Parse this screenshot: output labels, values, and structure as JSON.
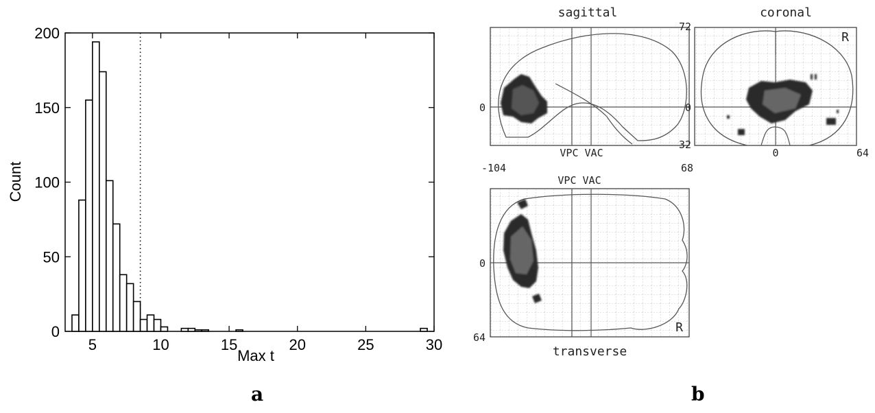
{
  "panels": {
    "a": {
      "letter": "a"
    },
    "b": {
      "letter": "b"
    }
  },
  "chart_data": {
    "type": "bar",
    "xlabel": "Max t",
    "ylabel": "Count",
    "xlim": [
      3,
      30
    ],
    "ylim": [
      0,
      200
    ],
    "xticks": [
      5,
      10,
      15,
      20,
      25,
      30
    ],
    "yticks": [
      0,
      50,
      100,
      150,
      200
    ],
    "bin_width": 0.5,
    "threshold": 8.5,
    "bins": [
      {
        "x": 3.75,
        "count": 11
      },
      {
        "x": 4.25,
        "count": 88
      },
      {
        "x": 4.75,
        "count": 155
      },
      {
        "x": 5.25,
        "count": 194
      },
      {
        "x": 5.75,
        "count": 174
      },
      {
        "x": 6.25,
        "count": 101
      },
      {
        "x": 6.75,
        "count": 72
      },
      {
        "x": 7.25,
        "count": 38
      },
      {
        "x": 7.75,
        "count": 32
      },
      {
        "x": 8.25,
        "count": 20
      },
      {
        "x": 8.75,
        "count": 8
      },
      {
        "x": 9.25,
        "count": 11
      },
      {
        "x": 9.75,
        "count": 8
      },
      {
        "x": 10.25,
        "count": 3
      },
      {
        "x": 11.75,
        "count": 2
      },
      {
        "x": 12.25,
        "count": 2
      },
      {
        "x": 12.75,
        "count": 1
      },
      {
        "x": 13.25,
        "count": 1
      },
      {
        "x": 15.75,
        "count": 1
      },
      {
        "x": 29.25,
        "count": 2
      }
    ],
    "grid": false
  },
  "glass_brain": {
    "sagittal": {
      "title": "sagittal",
      "left_tick": "0",
      "bottom_label": "VPC VAC",
      "x_min": "-104",
      "x_max": "68"
    },
    "coronal": {
      "title": "coronal",
      "top_tick": "72",
      "bottom_tick": "32",
      "left_tick": "0",
      "x_mid": "0",
      "x_max": "64",
      "side": "R"
    },
    "transverse": {
      "title": "transverse",
      "top_label": "VPC VAC",
      "left_tick": "0",
      "bottom_tick": "64",
      "side": "R"
    }
  }
}
